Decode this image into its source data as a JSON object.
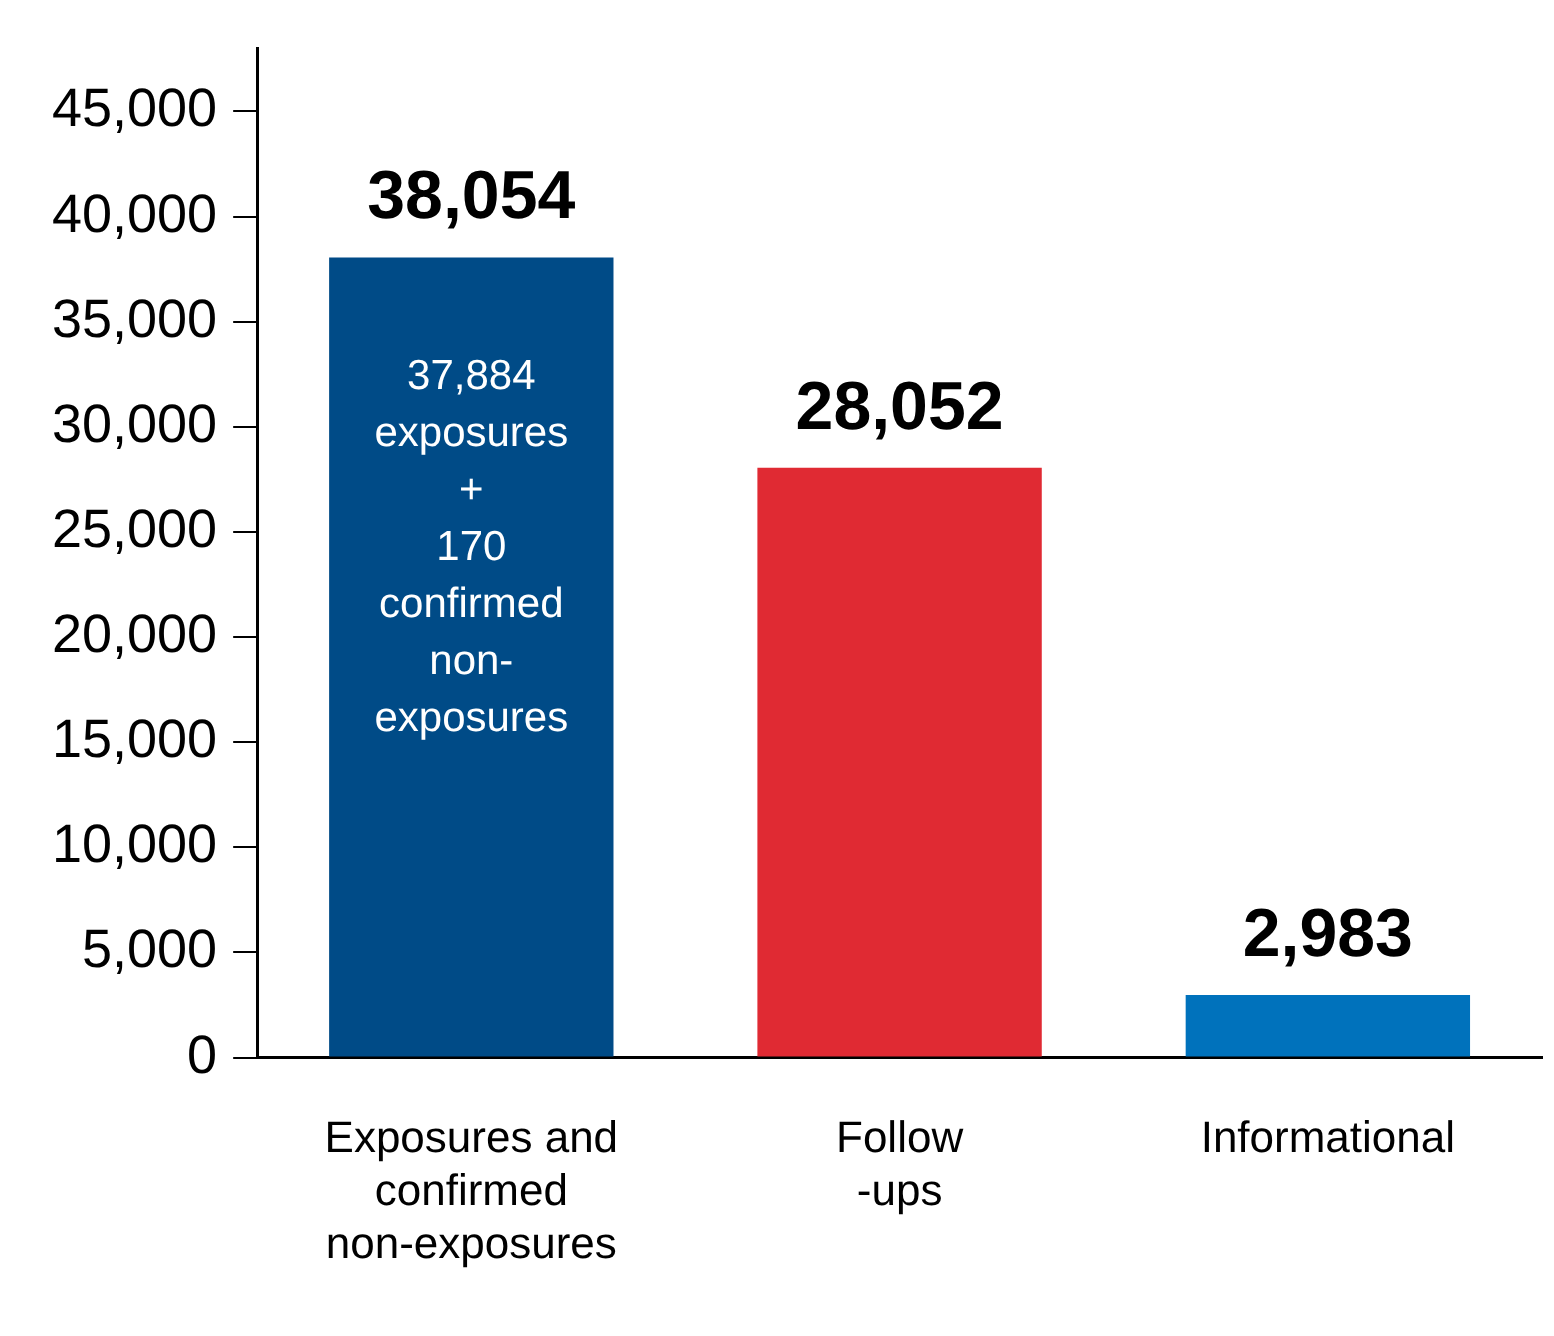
{
  "chart_data": {
    "type": "bar",
    "categories": [
      "Exposures and confirmed non-exposures",
      "Follow -ups",
      "Informational"
    ],
    "values": [
      38054,
      28052,
      2983
    ],
    "colors": [
      "#004b87",
      "#e02a33",
      "#0072bc"
    ],
    "ylim": [
      0,
      48000
    ],
    "yticks": [
      {
        "value": 0,
        "label": "0"
      },
      {
        "value": 5000,
        "label": "5,000"
      },
      {
        "value": 10000,
        "label": "10,000"
      },
      {
        "value": 15000,
        "label": "15,000"
      },
      {
        "value": 20000,
        "label": "20,000"
      },
      {
        "value": 25000,
        "label": "25,000"
      },
      {
        "value": 30000,
        "label": "30,000"
      },
      {
        "value": 35000,
        "label": "35,000"
      },
      {
        "value": 40000,
        "label": "40,000"
      },
      {
        "value": 45000,
        "label": "45,000"
      }
    ],
    "value_labels": [
      "38,054",
      "28,052",
      "2,983"
    ],
    "grid": false,
    "legend": false,
    "annotations": [
      "37,884 exposures + 170 confirmed non-exposures"
    ]
  }
}
